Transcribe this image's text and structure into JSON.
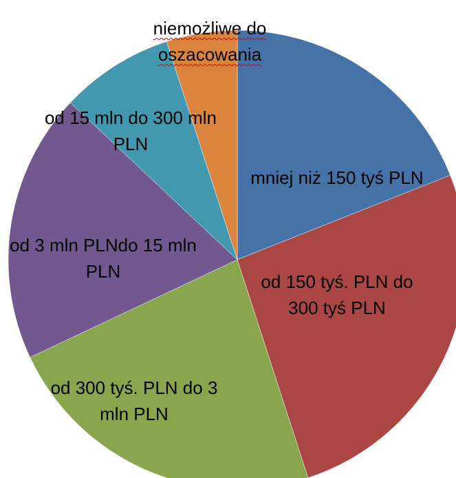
{
  "chart_data": {
    "type": "pie",
    "categories": [
      "mniej niż 150 tyś PLN",
      "od 150 tyś. PLN do 300 tyś PLN",
      "od 300 tyś. PLN do 3 mln PLN",
      "od 3 mln PLNdo 15 mln PLN",
      "od 15 mln do 300 mln PLN",
      "niemożliwe do oszacowania"
    ],
    "values": [
      19,
      26,
      23,
      19,
      8,
      5
    ],
    "colors": [
      "#4572a7",
      "#aa4643",
      "#89a54e",
      "#71588f",
      "#4198af",
      "#db843d"
    ]
  }
}
